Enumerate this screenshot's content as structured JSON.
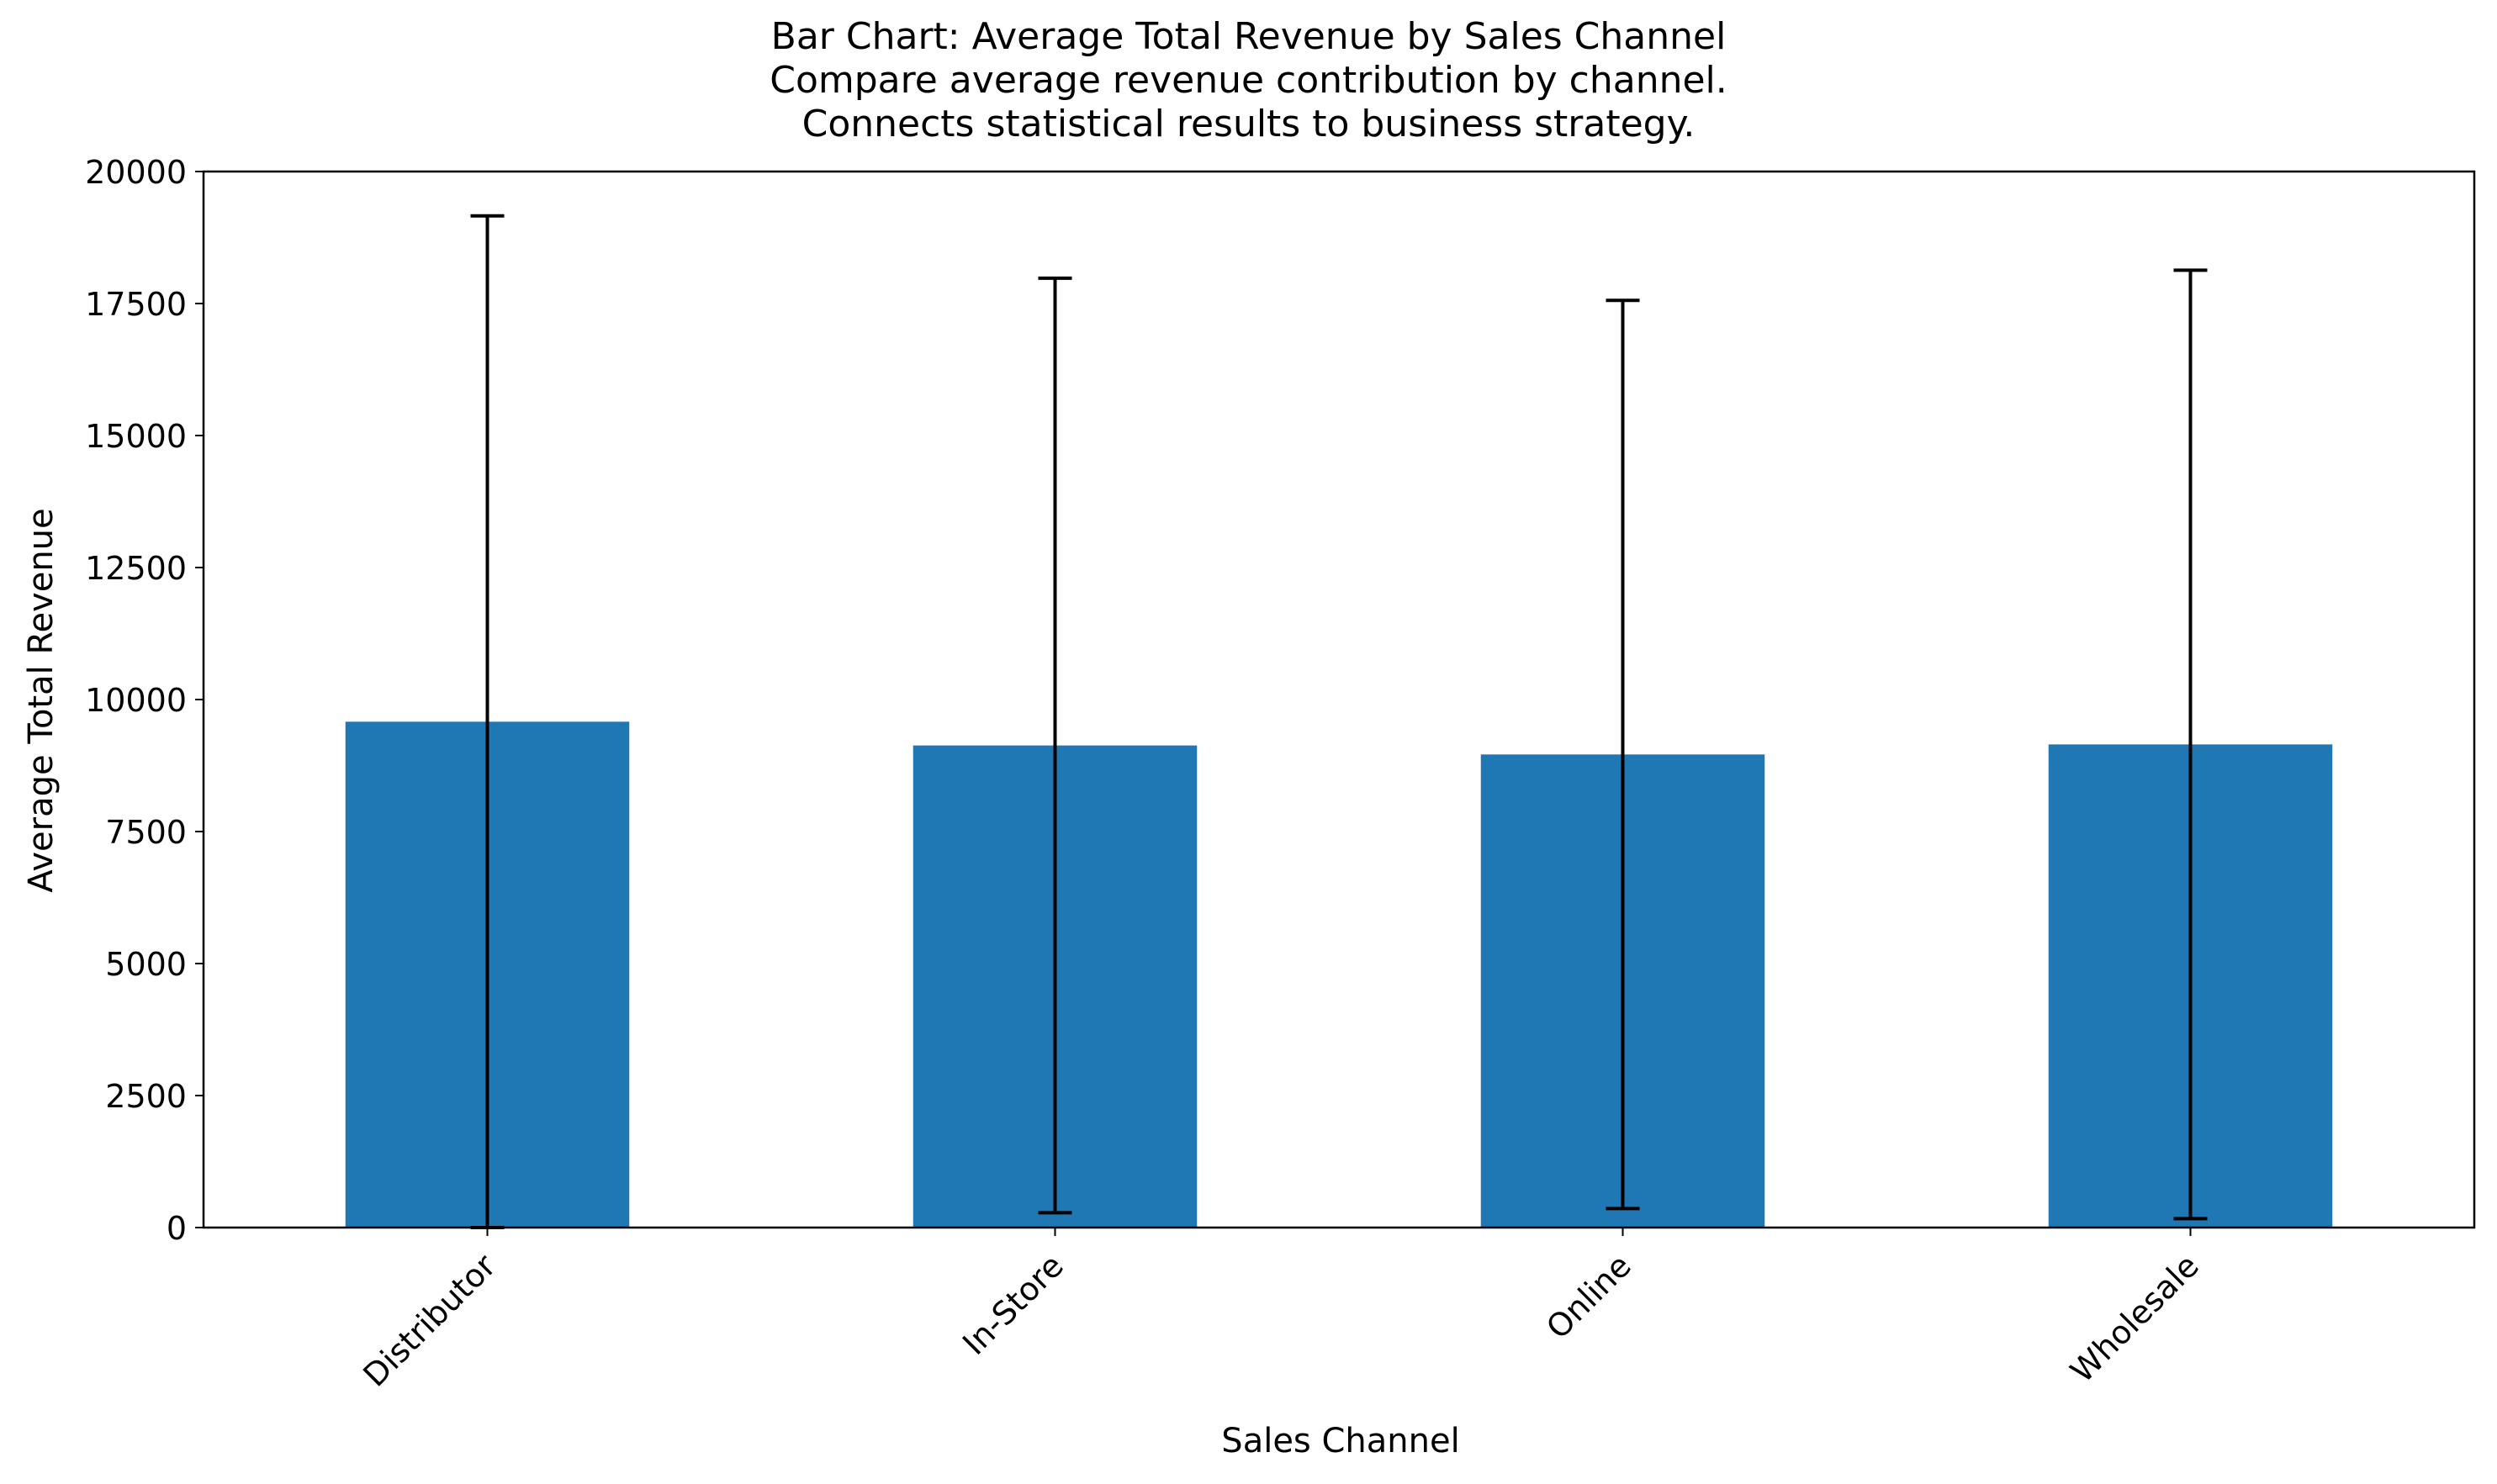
{
  "chart_data": {
    "type": "bar",
    "title": "Bar Chart: Average Total Revenue by Sales Channel",
    "subtitle_lines": [
      "Compare average revenue contribution by channel.",
      "Connects statistical results to business strategy."
    ],
    "xlabel": "Sales Channel",
    "ylabel": "Average Total Revenue",
    "categories": [
      "Distributor",
      "In-Store",
      "Online",
      "Wholesale"
    ],
    "values": [
      9580,
      9130,
      8960,
      9150
    ],
    "error": [
      9580,
      8850,
      8600,
      8980
    ],
    "ylim": [
      0,
      20000
    ],
    "yticks": [
      0,
      2500,
      5000,
      7500,
      10000,
      12500,
      15000,
      17500,
      20000
    ],
    "bar_color": "#1f77b4",
    "error_color": "#000000",
    "grid": false,
    "legend": "none"
  }
}
